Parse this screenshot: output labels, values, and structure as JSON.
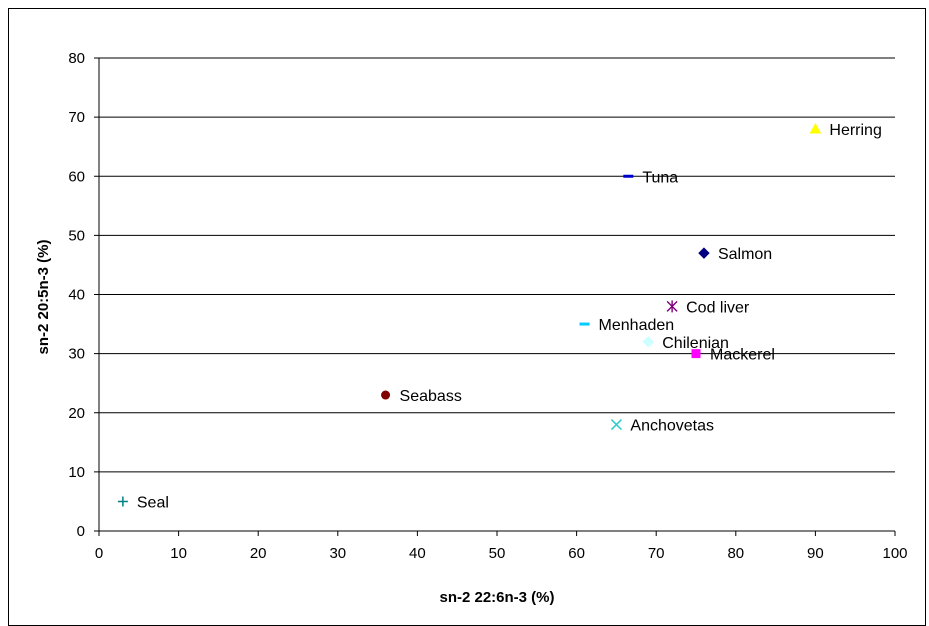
{
  "chart_data": {
    "type": "scatter",
    "title": "",
    "xlabel": "sn-2 22:6n-3 (%)",
    "ylabel": "sn-2 20:5n-3 (%)",
    "xlim": [
      0,
      100
    ],
    "ylim": [
      0,
      80
    ],
    "x_ticks": [
      0,
      10,
      20,
      30,
      40,
      50,
      60,
      70,
      80,
      90,
      100
    ],
    "y_ticks": [
      0,
      10,
      20,
      30,
      40,
      50,
      60,
      70,
      80
    ],
    "grid": "horizontal",
    "legend": "none",
    "points": [
      {
        "label": "Herring",
        "x": 90,
        "y": 68,
        "marker": "triangle",
        "color": "#ffff00"
      },
      {
        "label": "Tuna",
        "x": 66.5,
        "y": 60,
        "marker": "dash",
        "color": "#0000cc"
      },
      {
        "label": "Salmon",
        "x": 76,
        "y": 47,
        "marker": "diamond",
        "color": "#000080"
      },
      {
        "label": "Cod liver",
        "x": 72,
        "y": 38,
        "marker": "asterisk",
        "color": "#800080"
      },
      {
        "label": "Menhaden",
        "x": 61,
        "y": 35,
        "marker": "dash",
        "color": "#00ccff"
      },
      {
        "label": "Chilenian",
        "x": 69,
        "y": 32,
        "marker": "diamond",
        "color": "#ccffff"
      },
      {
        "label": "Mackerel",
        "x": 75,
        "y": 30,
        "marker": "square",
        "color": "#ff00ff"
      },
      {
        "label": "Seabass",
        "x": 36,
        "y": 23,
        "marker": "circle",
        "color": "#800000"
      },
      {
        "label": "Anchovetas",
        "x": 65,
        "y": 18,
        "marker": "x",
        "color": "#33cccc"
      },
      {
        "label": "Seal",
        "x": 3,
        "y": 5,
        "marker": "plus",
        "color": "#008080"
      }
    ]
  }
}
